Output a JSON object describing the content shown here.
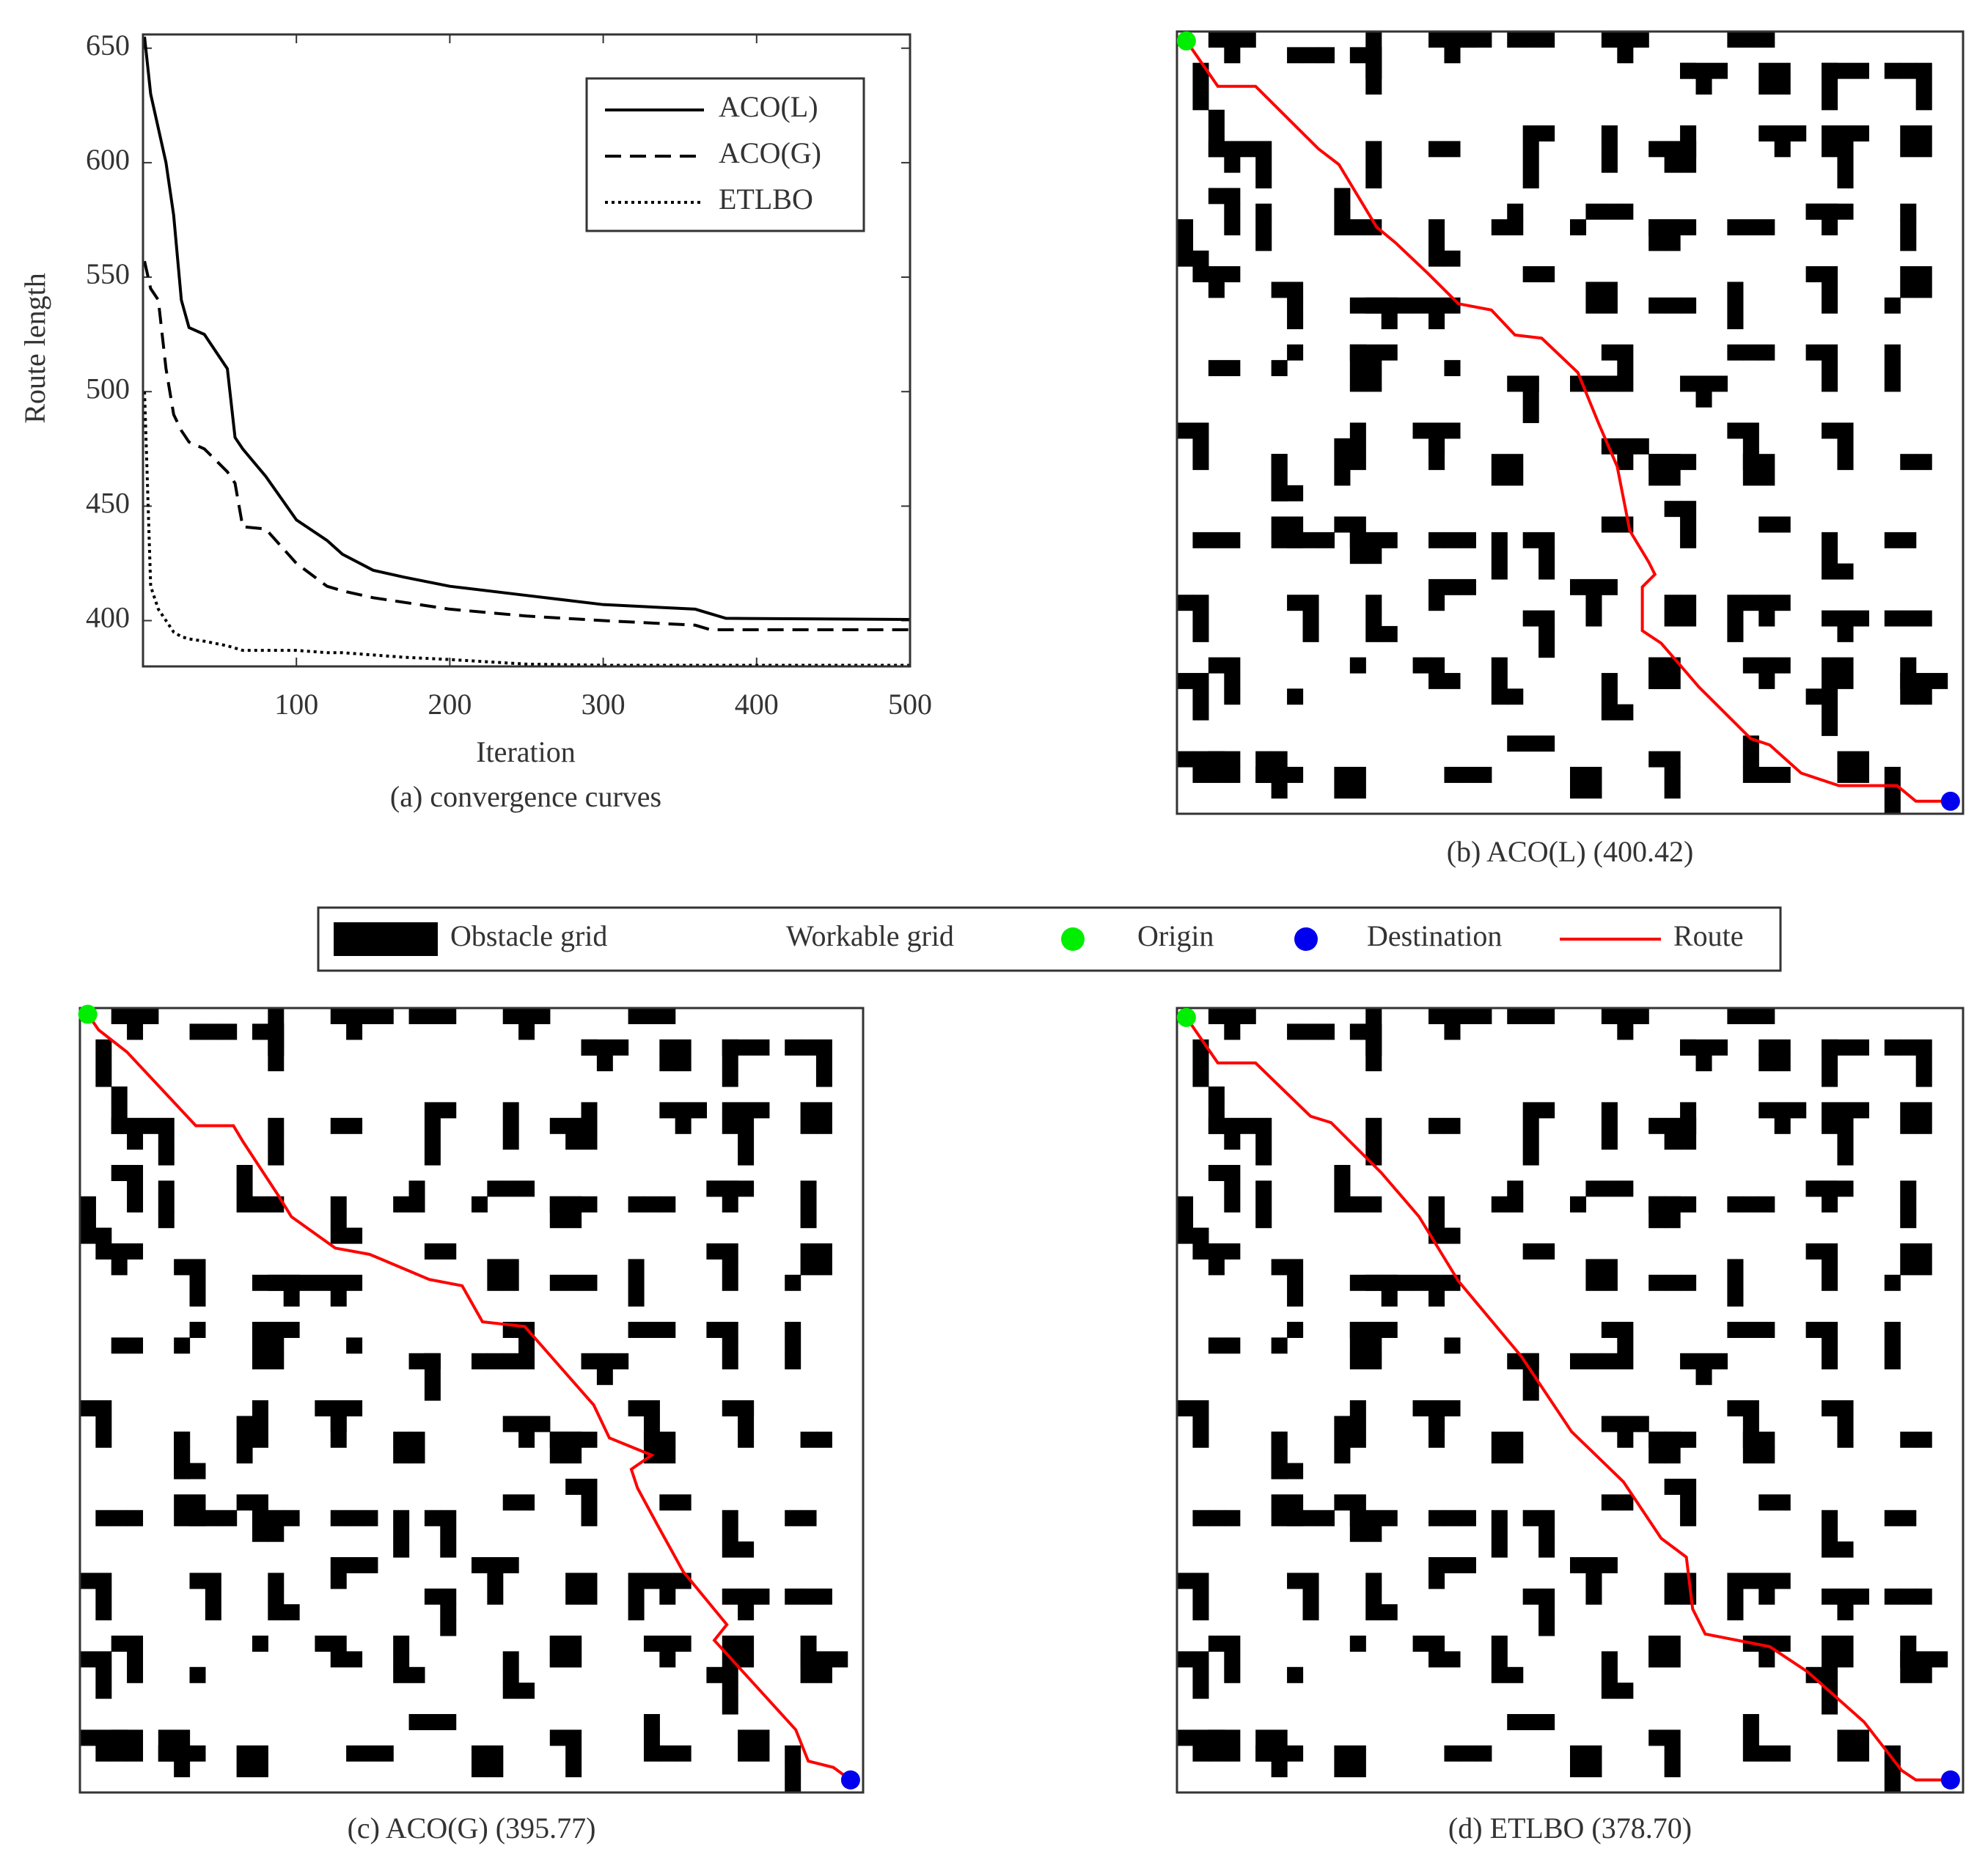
{
  "chart_data": [
    {
      "type": "line",
      "caption": "(a)  convergence curves",
      "xlabel": "Iteration",
      "ylabel": "Route length",
      "xlim": [
        0,
        500
      ],
      "xticks": [
        100,
        200,
        300,
        400,
        500
      ],
      "ylim": [
        380,
        656
      ],
      "yticks": [
        400,
        450,
        500,
        550,
        600,
        650
      ],
      "legend": "upper right",
      "x": [
        1,
        5,
        10,
        15,
        20,
        25,
        30,
        40,
        55,
        60,
        65,
        80,
        100,
        120,
        130,
        150,
        170,
        200,
        250,
        300,
        360,
        370,
        380,
        500
      ],
      "series": [
        {
          "name": "ACO(L)",
          "color": "#000000",
          "style": "solid",
          "values": [
            655,
            630,
            615,
            600,
            577,
            540,
            528,
            525,
            510,
            480,
            475,
            463,
            444,
            435,
            429,
            422,
            419,
            415,
            411,
            407,
            405,
            403,
            401,
            400.5
          ]
        },
        {
          "name": "ACO(G)",
          "color": "#000000",
          "style": "dashed",
          "values": [
            557,
            545,
            540,
            510,
            490,
            483,
            478,
            475,
            465,
            460,
            441,
            440,
            425,
            415,
            413,
            410,
            408,
            405,
            402,
            400,
            398,
            396,
            396,
            396
          ]
        },
        {
          "name": "ETLBO",
          "color": "#000000",
          "style": "dotted",
          "values": [
            500,
            415,
            405,
            400,
            395,
            393,
            392,
            391,
            389,
            388,
            387,
            387,
            387,
            386,
            386,
            385,
            384,
            383,
            381,
            380.5,
            380.5,
            380.5,
            380.5,
            380.5
          ]
        }
      ]
    },
    {
      "type": "map",
      "caption": "(b) ACO(L) (400.42)",
      "xlim": [
        0,
        50
      ],
      "ylim": [
        0,
        50
      ],
      "route_color": "#ff0000",
      "origin_color": "#00ee00",
      "destination_color": "#0000ee",
      "route": {
        "x": [
          0.6,
          2.6,
          5,
          7.5,
          9,
          10.3,
          12.7,
          13.9,
          15.9,
          17.9,
          20,
          21.5,
          23.2,
          25.5,
          26.8,
          28,
          28.8,
          30,
          30.4,
          29.6,
          29.6,
          30.8,
          33.2,
          36.5,
          37.7,
          39.7,
          42.1,
          45.8,
          47,
          49.2
        ],
        "y": [
          0.6,
          3.5,
          3.5,
          6,
          7.5,
          8.5,
          12.5,
          13.5,
          15.4,
          17.4,
          17.8,
          19.4,
          19.6,
          21.8,
          25,
          27.8,
          31.9,
          33.9,
          34.7,
          35.5,
          38.3,
          39.1,
          41.9,
          45.2,
          45.6,
          47.4,
          48.2,
          48.2,
          49.2,
          49.2
        ]
      }
    },
    {
      "type": "map",
      "caption": "(c) ACO(G) (395.77)",
      "xlim": [
        0,
        50
      ],
      "ylim": [
        0,
        50
      ],
      "route_color": "#ff0000",
      "origin_color": "#00ee00",
      "destination_color": "#0000ee",
      "route": {
        "x": [
          0.5,
          1.2,
          3,
          7.4,
          9.8,
          10.4,
          12.7,
          13.5,
          16.3,
          18.5,
          22.3,
          24.4,
          25.7,
          28.4,
          32.8,
          33.8,
          36.5,
          35.2,
          35.6,
          36.9,
          38.5,
          41.3,
          40.5,
          45.7,
          46.5,
          48.1,
          49.2
        ],
        "y": [
          0.4,
          1.4,
          2.8,
          7.5,
          7.5,
          8.5,
          12,
          13.3,
          15.3,
          15.7,
          17.3,
          17.7,
          20,
          20.3,
          25.3,
          27.4,
          28.5,
          29.4,
          30.6,
          33,
          35.9,
          39.3,
          40.3,
          46,
          48,
          48.4,
          49.2
        ]
      }
    },
    {
      "type": "map",
      "caption": "(d) ETLBO (378.70)",
      "xlim": [
        0,
        50
      ],
      "ylim": [
        0,
        50
      ],
      "route_color": "#ff0000",
      "origin_color": "#00ee00",
      "destination_color": "#0000ee",
      "route": {
        "x": [
          0.6,
          2.6,
          5,
          8.5,
          9.8,
          13,
          15.4,
          17.9,
          21.9,
          25.1,
          28.4,
          30.8,
          32.4,
          32.8,
          33.6,
          37.7,
          40.1,
          43.7,
          46.1,
          47,
          49.2
        ],
        "y": [
          0.6,
          3.5,
          3.5,
          6.9,
          7.3,
          10.5,
          13.3,
          17.4,
          22.2,
          27,
          30.2,
          33.8,
          35,
          38.3,
          39.9,
          40.7,
          42.3,
          45.5,
          48.6,
          49.2,
          49.2
        ]
      }
    }
  ],
  "map_legend": {
    "items": [
      {
        "label": "Obstacle grid",
        "kind": "rect",
        "color": "#000000"
      },
      {
        "label": "Workable grid",
        "kind": "rect",
        "color": "#ffffff"
      },
      {
        "label": "Origin",
        "kind": "dot",
        "color": "#00ee00"
      },
      {
        "label": "Destination",
        "kind": "dot",
        "color": "#0000ee"
      },
      {
        "label": "Route",
        "kind": "line",
        "color": "#ff0000"
      }
    ]
  }
}
